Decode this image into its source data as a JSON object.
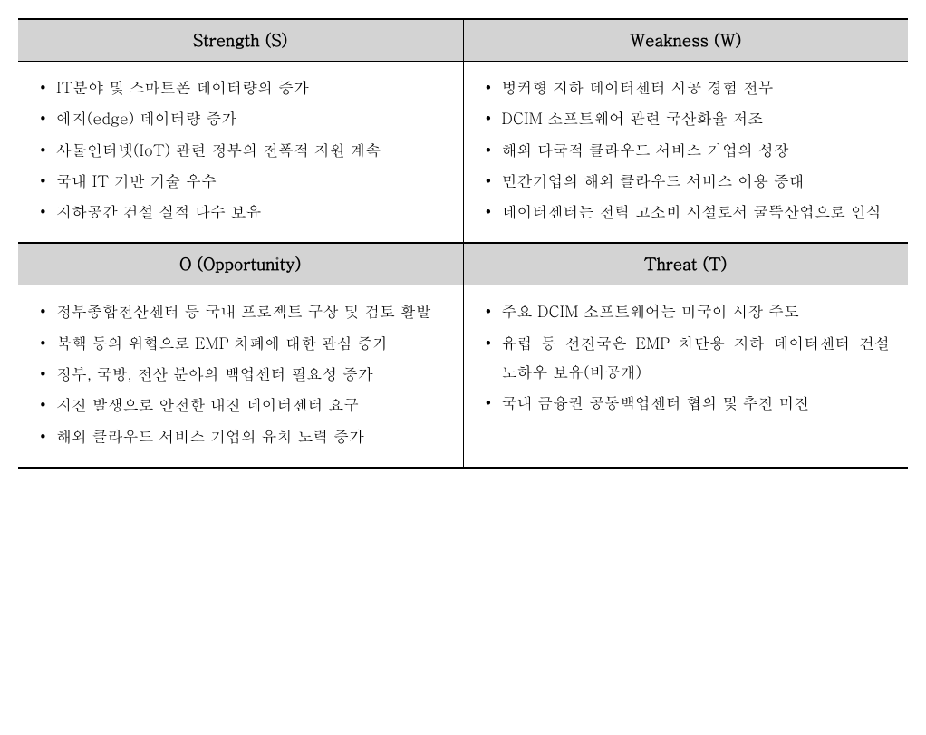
{
  "table": {
    "headers": {
      "strength": "Strength (S)",
      "weakness": "Weakness (W)",
      "opportunity": "O (Opportunity)",
      "threat": "Threat (T)"
    },
    "strength_items": [
      "IT분야 및 스마트폰 데이터량의 증가",
      "에지(edge) 데이터량 증가",
      "사물인터넷(IoT) 관련 정부의 전폭적 지원 계속",
      "국내 IT 기반 기술 우수",
      "지하공간 건설 실적 다수 보유"
    ],
    "weakness_items": [
      "벙커형 지하 데이터센터 시공 경험 전무",
      "DCIM 소프트웨어 관련 국산화율 저조",
      "해외 다국적 클라우드 서비스 기업의 성장",
      "민간기업의 해외 클라우드 서비스 이용 증대",
      "데이터센터는 전력 고소비 시설로서 굴뚝산업으로 인식"
    ],
    "opportunity_items": [
      "정부종합전산센터 등 국내 프로젝트 구상 및 검토 활발",
      "북핵 등의 위협으로 EMP 차폐에 대한 관심 증가",
      "정부, 국방, 전산 분야의 백업센터 필요성 증가",
      "지진 발생으로 안전한 내진 데이터센터 요구",
      "해외 클라우드 서비스 기업의 유치 노력 증가"
    ],
    "threat_items": [
      "주요 DCIM 소프트웨어는 미국이 시장 주도",
      "유럽 등 선진국은 EMP 차단용 지하 데이터센터 건설 노하우 보유(비공개)",
      "국내 금융권 공동백업센터 협의 및 추진 미진"
    ]
  },
  "styling": {
    "header_bg_color": "#d3d3d3",
    "border_color": "#000000",
    "header_fontsize": 18,
    "cell_fontsize": 17,
    "line_height": 1.9,
    "table_width": "100%",
    "column_width": "50%",
    "bullet_char": "•",
    "font_family": "Batang, serif"
  }
}
